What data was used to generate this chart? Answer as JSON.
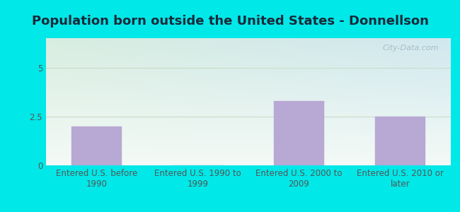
{
  "title": "Population born outside the United States - Donnellson",
  "categories": [
    "Entered U.S. before\n1990",
    "Entered U.S. 1990 to\n1999",
    "Entered U.S. 2000 to\n2009",
    "Entered U.S. 2010 or\nlater"
  ],
  "values": [
    2.0,
    0.0,
    3.3,
    2.5
  ],
  "bar_color": "#b8a8d4",
  "bar_edge_color": "#b8a8d4",
  "figure_bg_color": "#00e8e8",
  "plot_bg_color_topleft": "#d8ede0",
  "plot_bg_color_topright": "#d0e8ef",
  "plot_bg_color_bottom": "#f4faf6",
  "title_fontsize": 13,
  "title_color": "#1a2a3a",
  "tick_label_fontsize": 8.5,
  "tick_label_color": "#555555",
  "yticks": [
    0,
    2.5,
    5
  ],
  "ylim_min": 0,
  "ylim_max": 6.5,
  "watermark": "City-Data.com",
  "watermark_color": "#a8bcc8",
  "grid_color": "#c8dcc8",
  "bar_width": 0.5
}
